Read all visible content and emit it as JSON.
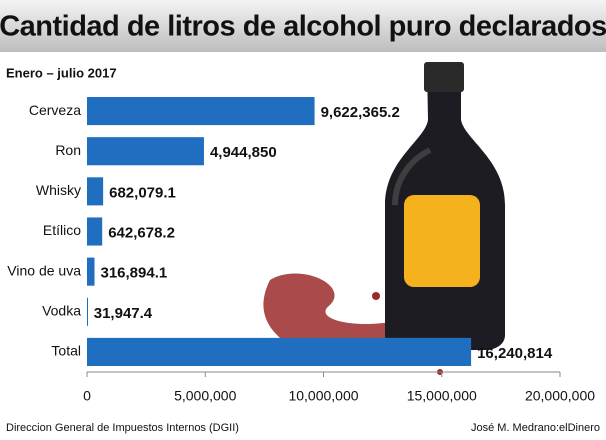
{
  "chart_data": {
    "type": "bar",
    "orientation": "horizontal",
    "title": "Cantidad de litros de alcohol puro declarados",
    "subtitle": "Enero – julio 2017",
    "categories": [
      "Cerveza",
      "Ron",
      "Whisky",
      "Etílico",
      "Vino de uva",
      "Vodka",
      "Total"
    ],
    "values": [
      9622365.2,
      4944850,
      682079.1,
      642678.2,
      316894.1,
      31947.4,
      16240814
    ],
    "value_labels": [
      "9,622,365.2",
      "4,944,850",
      "682,079.1",
      "642,678.2",
      "316,894.1",
      "31,947.4",
      "16,240,814"
    ],
    "color": "#1f6ebf",
    "xlim": [
      0,
      20000000
    ],
    "xticks": [
      0,
      {
        "value": 5000000,
        "label": "5,000,000"
      },
      {
        "value": 10000000,
        "label": "10,000,000"
      },
      {
        "value": 15000000,
        "label": "15,000,000"
      },
      {
        "value": 20000000,
        "label": "20,000,000"
      }
    ],
    "source": "Direccion General de Impuestos Internos (DGII)",
    "credit": "José M. Medrano:elDinero"
  }
}
